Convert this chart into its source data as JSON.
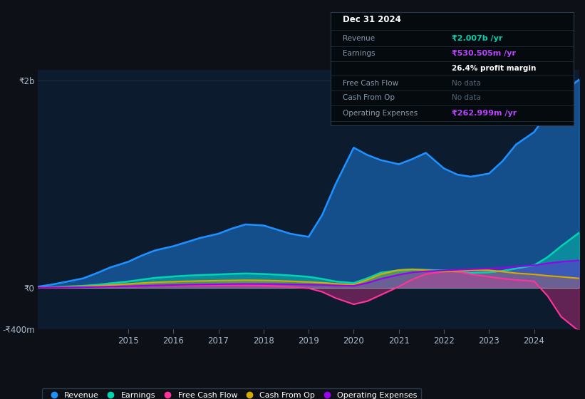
{
  "bg_color": "#0d1117",
  "plot_bg_color": "#0d1b2e",
  "grid_color": "#1e2d45",
  "years": [
    2013.0,
    2013.3,
    2013.6,
    2014.0,
    2014.3,
    2014.6,
    2015.0,
    2015.3,
    2015.6,
    2016.0,
    2016.3,
    2016.6,
    2017.0,
    2017.3,
    2017.6,
    2018.0,
    2018.3,
    2018.6,
    2019.0,
    2019.3,
    2019.6,
    2020.0,
    2020.3,
    2020.6,
    2021.0,
    2021.3,
    2021.6,
    2022.0,
    2022.3,
    2022.6,
    2023.0,
    2023.3,
    2023.6,
    2024.0,
    2024.3,
    2024.6,
    2025.0
  ],
  "revenue": [
    10,
    30,
    55,
    90,
    140,
    195,
    250,
    310,
    360,
    400,
    440,
    480,
    520,
    570,
    610,
    600,
    560,
    520,
    490,
    700,
    1000,
    1350,
    1280,
    1230,
    1190,
    1240,
    1300,
    1150,
    1090,
    1070,
    1100,
    1220,
    1380,
    1500,
    1680,
    1870,
    2007
  ],
  "earnings": [
    2,
    5,
    10,
    18,
    28,
    42,
    60,
    78,
    95,
    108,
    116,
    122,
    128,
    133,
    137,
    132,
    126,
    118,
    105,
    85,
    60,
    45,
    90,
    145,
    168,
    175,
    172,
    165,
    155,
    143,
    148,
    162,
    185,
    215,
    295,
    400,
    530
  ],
  "free_cash_flow": [
    1,
    2,
    3,
    5,
    7,
    9,
    14,
    18,
    21,
    22,
    23,
    24,
    25,
    25,
    24,
    20,
    14,
    7,
    -5,
    -40,
    -100,
    -160,
    -130,
    -70,
    10,
    80,
    130,
    155,
    155,
    130,
    105,
    88,
    75,
    62,
    -80,
    -280,
    -420
  ],
  "cash_from_op": [
    2,
    4,
    7,
    12,
    18,
    26,
    36,
    45,
    52,
    58,
    62,
    65,
    68,
    70,
    72,
    70,
    67,
    62,
    55,
    48,
    38,
    28,
    75,
    130,
    170,
    178,
    170,
    155,
    163,
    170,
    168,
    155,
    140,
    128,
    115,
    105,
    90
  ],
  "operating_expenses": [
    1,
    2,
    3,
    5,
    7,
    10,
    14,
    18,
    22,
    26,
    29,
    31,
    33,
    35,
    36,
    36,
    35,
    33,
    30,
    27,
    22,
    18,
    45,
    85,
    125,
    148,
    158,
    165,
    172,
    178,
    185,
    192,
    202,
    215,
    235,
    250,
    263
  ],
  "ylim_min": -400,
  "ylim_max": 2100,
  "ytick_vals": [
    -400,
    0,
    2000
  ],
  "ytick_labels": [
    "-₹400m",
    "₹0",
    "₹2b"
  ],
  "xticks": [
    2015,
    2016,
    2017,
    2018,
    2019,
    2020,
    2021,
    2022,
    2023,
    2024
  ],
  "revenue_color": "#1e90ff",
  "earnings_color": "#00d4b0",
  "fcf_color": "#ff3399",
  "cfop_color": "#d4aa00",
  "opex_color": "#9900ee",
  "legend_items": [
    "Revenue",
    "Earnings",
    "Free Cash Flow",
    "Cash From Op",
    "Operating Expenses"
  ],
  "legend_colors": [
    "#1e90ff",
    "#00d4b0",
    "#ff3399",
    "#d4aa00",
    "#9900ee"
  ],
  "info_box": {
    "date": "Dec 31 2024",
    "revenue_label": "Revenue",
    "revenue_value": "₹2.007b /yr",
    "revenue_color": "#00d4b0",
    "earnings_label": "Earnings",
    "earnings_value": "₹530.505m /yr",
    "earnings_color": "#bb44ff",
    "margin_value": "26.4% profit margin",
    "fcf_label": "Free Cash Flow",
    "fcf_value": "No data",
    "cfop_label": "Cash From Op",
    "cfop_value": "No data",
    "opex_label": "Operating Expenses",
    "opex_value": "₹262.999m /yr",
    "opex_color": "#bb44ff"
  }
}
